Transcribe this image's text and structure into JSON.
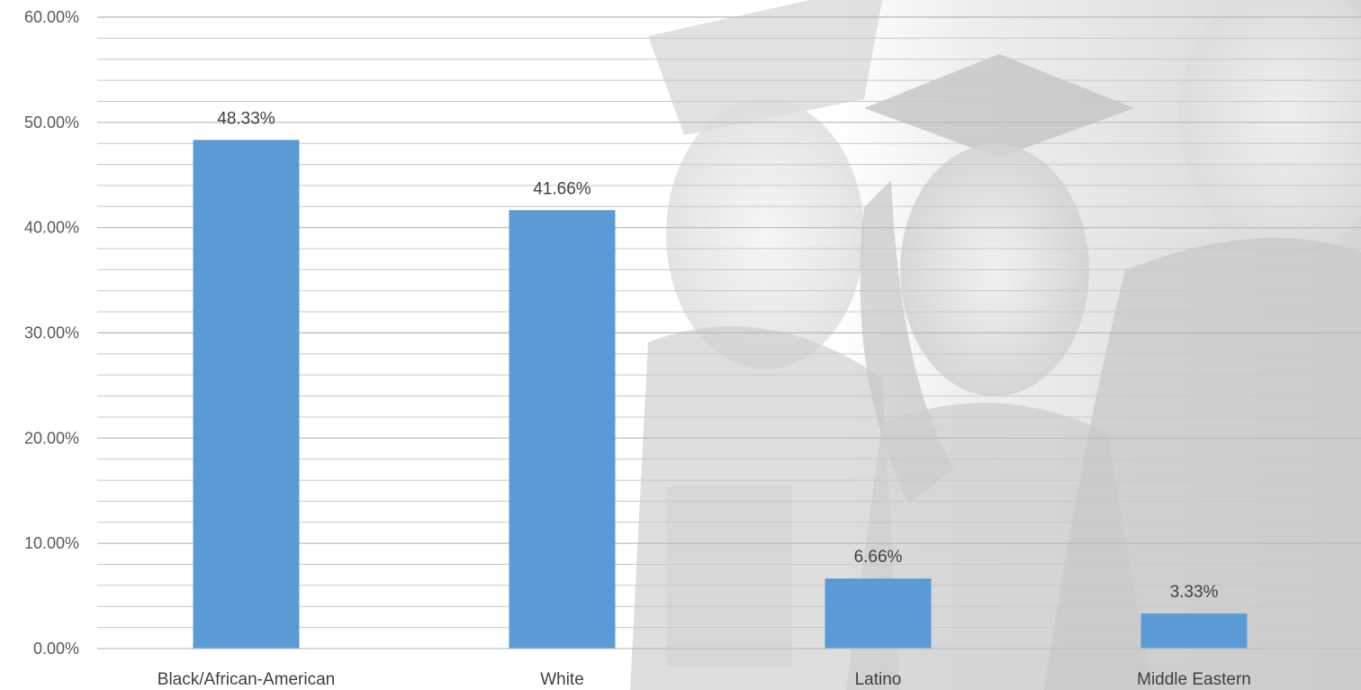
{
  "chart_data": {
    "type": "bar",
    "title": "",
    "xlabel": "",
    "ylabel": "",
    "categories": [
      "Black/African-American",
      "White",
      "Latino",
      "Middle Eastern"
    ],
    "values": [
      48.33,
      41.66,
      6.66,
      3.33
    ],
    "data_labels": [
      "48.33%",
      "41.66%",
      "6.66%",
      "3.33%"
    ],
    "ylim": [
      0,
      60
    ],
    "y_ticks": [
      0,
      10,
      20,
      30,
      40,
      50,
      60
    ],
    "y_tick_labels": [
      "0.00%",
      "10.00%",
      "20.00%",
      "30.00%",
      "40.00%",
      "50.00%",
      "60.00%"
    ],
    "grid": true,
    "minor_grid": true,
    "legend": "none",
    "bar_color": "#5b9bd5",
    "grid_color": "#c8c8c8",
    "background_image": "faded black-and-white graduation photo"
  }
}
